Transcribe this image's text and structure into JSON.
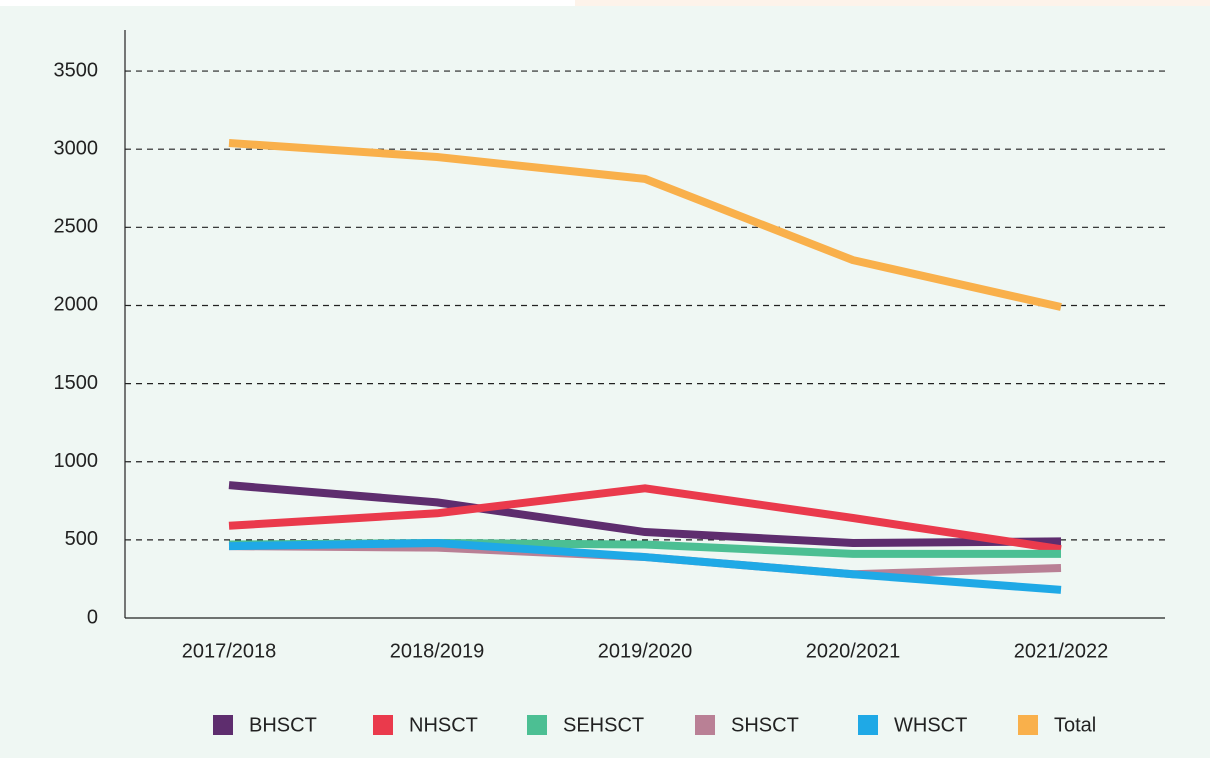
{
  "chart_data": {
    "type": "line",
    "categories": [
      "2017/2018",
      "2018/2019",
      "2019/2020",
      "2020/2021",
      "2021/2022"
    ],
    "series": [
      {
        "name": "BHSCT",
        "color": "#5e2d6e",
        "values": [
          850,
          740,
          550,
          480,
          490
        ]
      },
      {
        "name": "NHSCT",
        "color": "#ea3a4c",
        "values": [
          590,
          670,
          830,
          640,
          440
        ]
      },
      {
        "name": "SEHSCT",
        "color": "#4cbf93",
        "values": [
          470,
          480,
          470,
          410,
          410
        ]
      },
      {
        "name": "SHSCT",
        "color": "#b98095",
        "values": [
          460,
          450,
          390,
          280,
          320
        ]
      },
      {
        "name": "WHSCT",
        "color": "#1fa9e6",
        "values": [
          460,
          480,
          390,
          280,
          180
        ]
      },
      {
        "name": "Total",
        "color": "#f9b04b",
        "values": [
          3040,
          2950,
          2810,
          2290,
          1990
        ]
      }
    ],
    "ylim": [
      0,
      3750
    ],
    "yticks": [
      0,
      500,
      1000,
      1500,
      2000,
      2500,
      3000,
      3500
    ],
    "grid": true,
    "legend": "bottom"
  }
}
